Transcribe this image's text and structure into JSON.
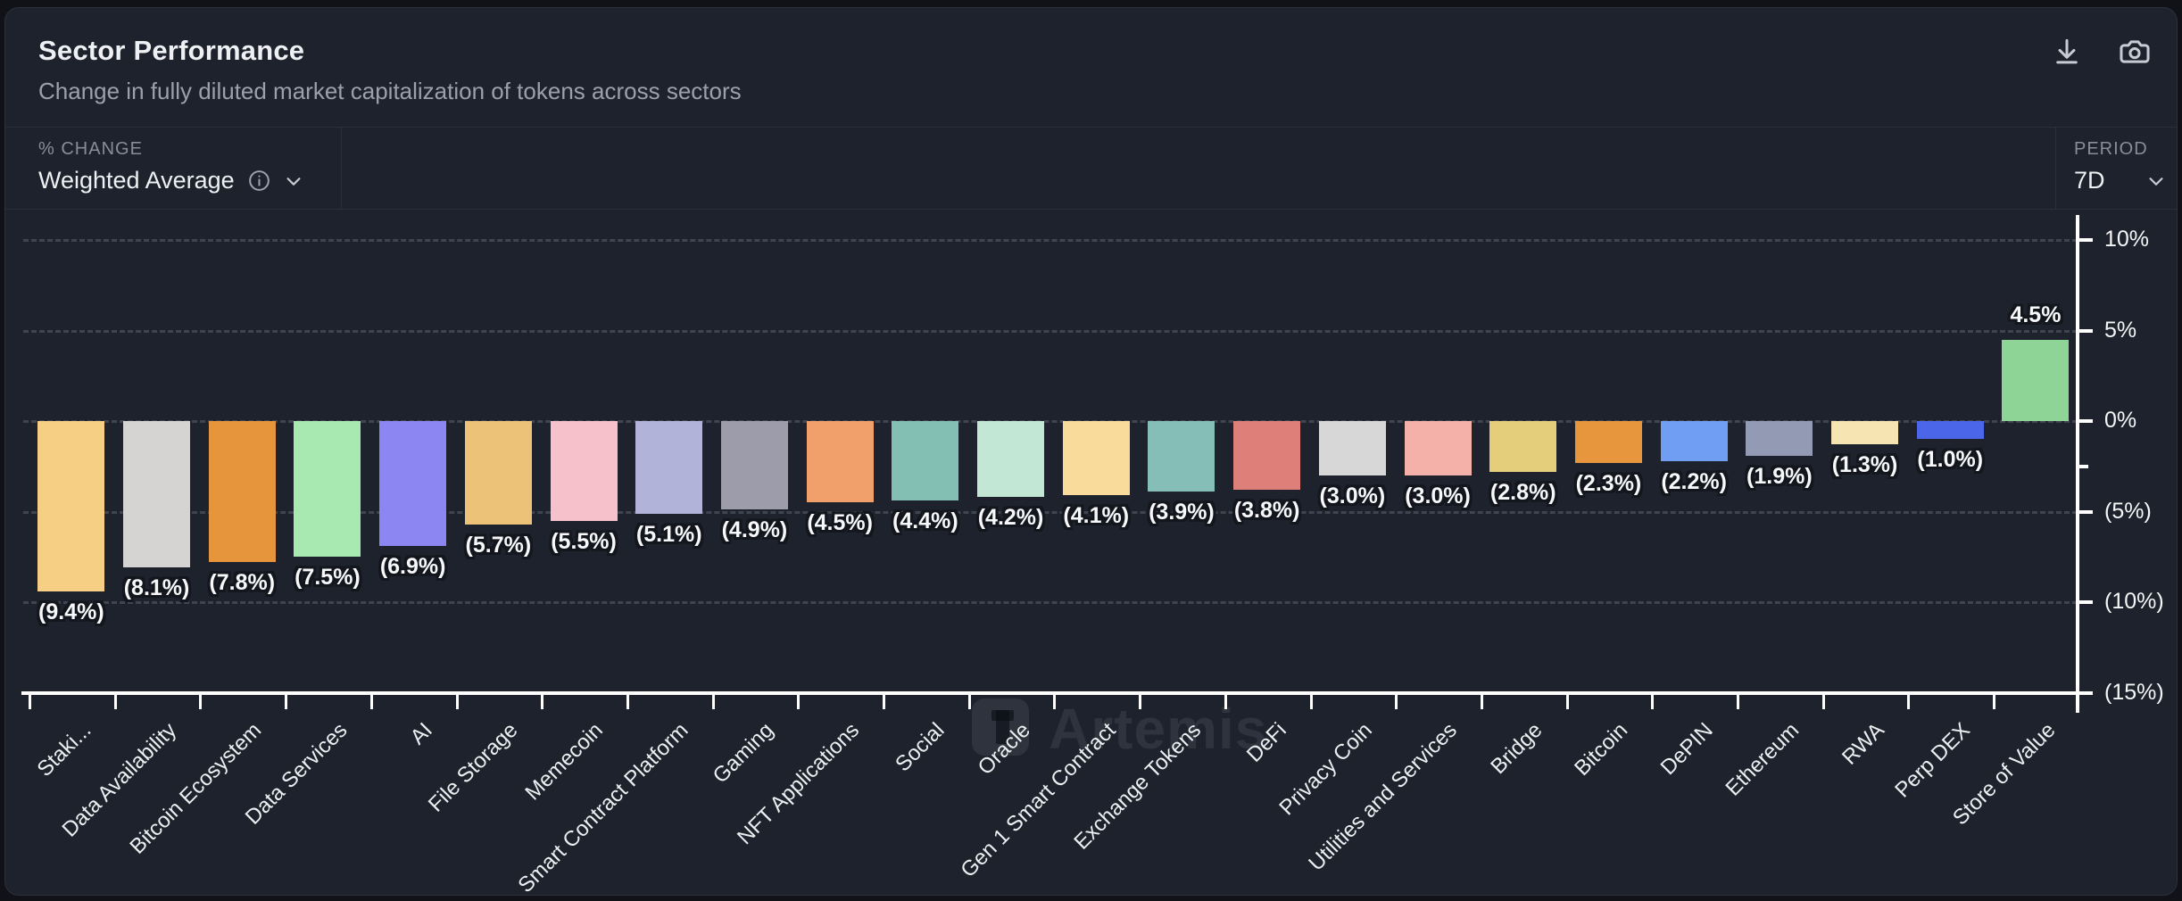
{
  "header": {
    "title": "Sector Performance",
    "subtitle": "Change in fully diluted market capitalization of tokens across sectors"
  },
  "toolbar": {
    "metric_label": "% CHANGE",
    "metric_value": "Weighted Average",
    "period_label": "PERIOD",
    "period_value": "7D"
  },
  "header_icons": [
    "download-icon",
    "camera-icon"
  ],
  "watermark": "Artemis",
  "chart_data": {
    "type": "bar",
    "title": "Sector Performance",
    "xlabel": "",
    "ylabel": "% change",
    "ylim": [
      -15,
      10
    ],
    "grid": "horizontal-dashed",
    "legend": "none",
    "axis_color": "#ffffff",
    "gridline_values": [
      10,
      5,
      0,
      -5,
      -10
    ],
    "yticks": [
      {
        "value": 10,
        "label": "10%"
      },
      {
        "value": 5,
        "label": "5%"
      },
      {
        "value": 0,
        "label": "0%"
      },
      {
        "value": -5,
        "label": "(5%)"
      },
      {
        "value": -10,
        "label": "(10%)"
      },
      {
        "value": -15,
        "label": "(15%)"
      }
    ],
    "minor_tick_value": -2.5,
    "categories": [
      "Staki...",
      "Data Availability",
      "Bitcoin Ecosystem",
      "Data Services",
      "AI",
      "File Storage",
      "Memecoin",
      "Smart Contract Platform",
      "Gaming",
      "NFT Applications",
      "Social",
      "Oracle",
      "Gen 1 Smart Contract",
      "Exchange Tokens",
      "DeFi",
      "Privacy Coin",
      "Utilities and Services",
      "Bridge",
      "Bitcoin",
      "DePIN",
      "Ethereum",
      "RWA",
      "Perp DEX",
      "Store of Value"
    ],
    "values": [
      -9.4,
      -8.1,
      -7.8,
      -7.5,
      -6.9,
      -5.7,
      -5.5,
      -5.1,
      -4.9,
      -4.5,
      -4.4,
      -4.2,
      -4.1,
      -3.9,
      -3.8,
      -3.0,
      -3.0,
      -2.8,
      -2.3,
      -2.2,
      -1.9,
      -1.3,
      -1.0,
      4.5
    ],
    "value_labels": [
      "(9.4%)",
      "(8.1%)",
      "(7.8%)",
      "(7.5%)",
      "(6.9%)",
      "(5.7%)",
      "(5.5%)",
      "(5.1%)",
      "(4.9%)",
      "(4.5%)",
      "(4.4%)",
      "(4.2%)",
      "(4.1%)",
      "(3.9%)",
      "(3.8%)",
      "(3.0%)",
      "(3.0%)",
      "(2.8%)",
      "(2.3%)",
      "(2.2%)",
      "(1.9%)",
      "(1.3%)",
      "(1.0%)",
      "4.5%"
    ],
    "bar_colors": [
      "#f6cf85",
      "#d5d4d3",
      "#e7953d",
      "#a8e8b1",
      "#8b86f1",
      "#ecc278",
      "#f6c1cb",
      "#b1b3d8",
      "#9c9cab",
      "#f1a06c",
      "#83bfb2",
      "#c3e7d5",
      "#f9dc9b",
      "#84beb7",
      "#df7f79",
      "#d7d7d7",
      "#f4b1a9",
      "#e5ce7b",
      "#e7963d",
      "#6f9ef3",
      "#939bb4",
      "#f7e4b3",
      "#4c66e9",
      "#8ed497"
    ]
  }
}
